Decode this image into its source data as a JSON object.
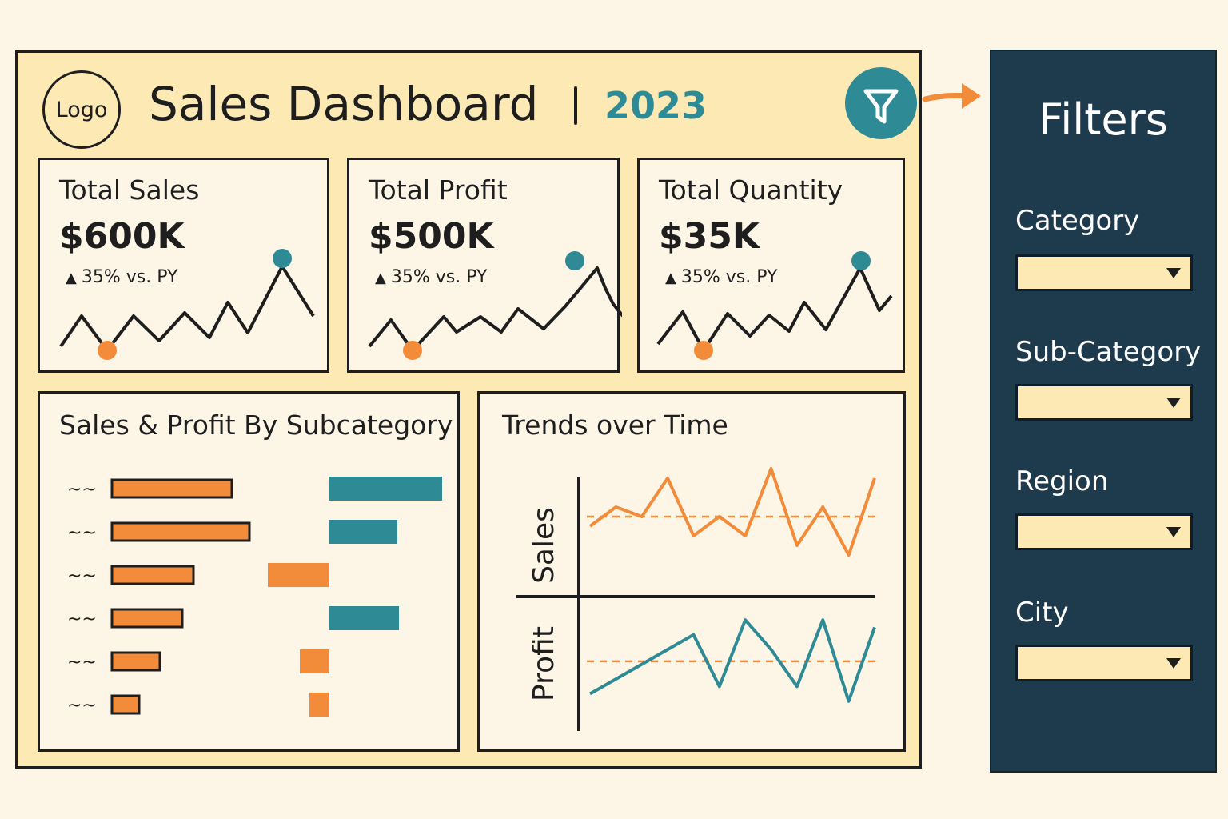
{
  "header": {
    "logo_text": "Logo",
    "title": "Sales Dashboard",
    "year": "2023"
  },
  "kpis": [
    {
      "title": "Total Sales",
      "value": "$600K",
      "delta": "35% vs. PY"
    },
    {
      "title": "Total Profit",
      "value": "$500K",
      "delta": "35% vs. PY"
    },
    {
      "title": "Total Quantity",
      "value": "$35K",
      "delta": "35% vs. PY"
    }
  ],
  "subcategory_chart": {
    "title": "Sales & Profit By Subcategory",
    "row_label": "~~",
    "sales": [
      150,
      172,
      102,
      88,
      60,
      34
    ],
    "profit": [
      142,
      86,
      -76,
      88,
      -36,
      -24
    ]
  },
  "trends_chart": {
    "title": "Trends over Time",
    "sales_label": "Sales",
    "profit_label": "Profit"
  },
  "chart_data": [
    {
      "type": "bar",
      "series": [
        {
          "values": [
            150,
            172,
            102,
            88,
            60,
            34
          ]
        },
        {
          "values": [
            142,
            86,
            -76,
            88,
            -36,
            -24
          ]
        }
      ]
    },
    {
      "type": "line",
      "series": [
        {
          "values": [
            5,
            7,
            6,
            10,
            4,
            6,
            4,
            11,
            3,
            7,
            2,
            10
          ]
        },
        {
          "values": [
            2,
            3,
            4,
            5,
            6,
            2.5,
            7,
            5,
            2.5,
            7,
            1.5,
            6.5
          ]
        }
      ]
    }
  ],
  "filters": {
    "title": "Filters",
    "fields": [
      {
        "label": "Category",
        "value": ""
      },
      {
        "label": "Sub-Category",
        "value": ""
      },
      {
        "label": "Region",
        "value": ""
      },
      {
        "label": "City",
        "value": ""
      }
    ]
  },
  "colors": {
    "accent": "#2e8b95",
    "orange": "#f28c3a",
    "navy": "#1e3a4d",
    "cream": "#fce9b4"
  },
  "icons": {
    "filter": "filter-funnel-icon",
    "arrow": "arrow-right-icon",
    "dropdown": "caret-down-icon",
    "delta": "triangle-up-icon"
  }
}
